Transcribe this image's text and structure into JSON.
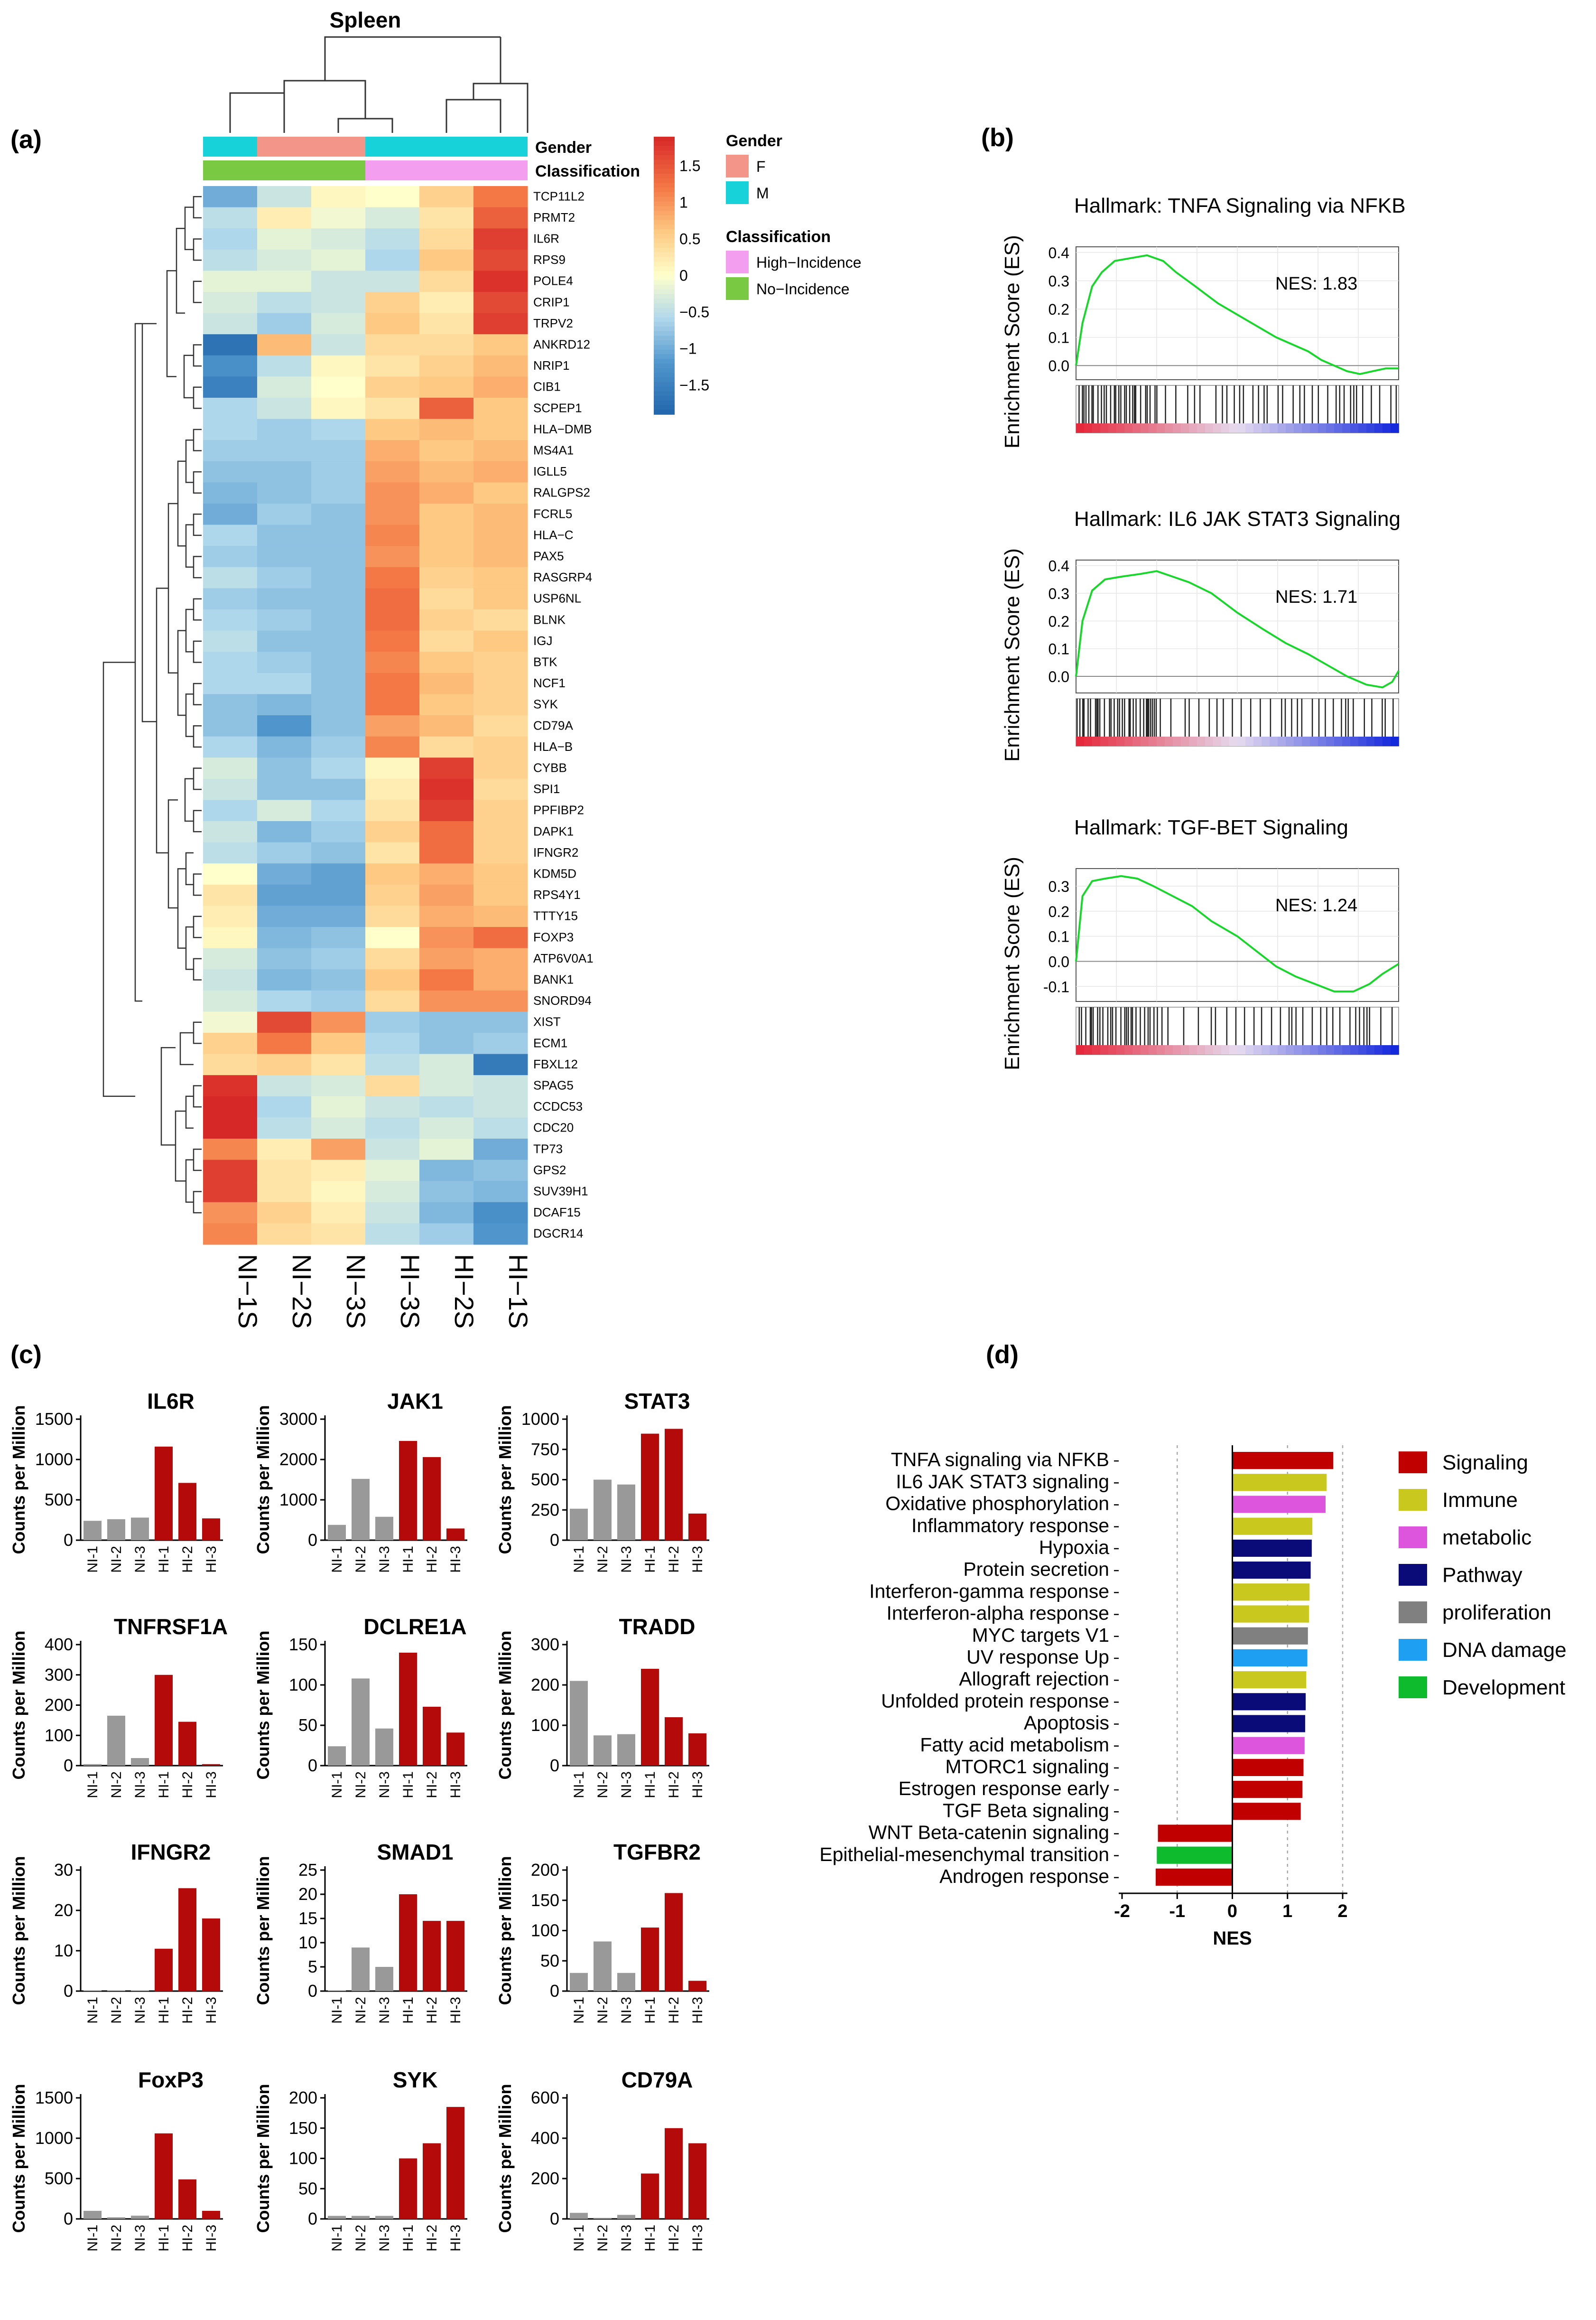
{
  "panel_labels": {
    "a": "(a)",
    "b": "(b)",
    "c": "(c)",
    "d": "(d)"
  },
  "chart_data": [
    {
      "type": "heatmap",
      "id": "a",
      "title": "Spleen",
      "columns": [
        "NI−1S",
        "NI−2S",
        "NI−3S",
        "HI−3S",
        "HI−2S",
        "HI−1S"
      ],
      "gender_values": [
        "M",
        "F",
        "F",
        "M",
        "M",
        "M"
      ],
      "classification_values": [
        "No-Incidence",
        "No-Incidence",
        "No-Incidence",
        "High-Incidence",
        "High-Incidence",
        "High-Incidence"
      ],
      "annotation_labels": [
        "Gender",
        "Classification"
      ],
      "genes": [
        "TCP11L2",
        "PRMT2",
        "IL6R",
        "RPS9",
        "POLE4",
        "CRIP1",
        "TRPV2",
        "ANKRD12",
        "NRIP1",
        "CIB1",
        "SCPEP1",
        "HLA−DMB",
        "MS4A1",
        "IGLL5",
        "RALGPS2",
        "FCRL5",
        "HLA−C",
        "PAX5",
        "RASGRP4",
        "USP6NL",
        "BLNK",
        "IGJ",
        "BTK",
        "NCF1",
        "SYK",
        "CD79A",
        "HLA−B",
        "CYBB",
        "SPI1",
        "PPFIBP2",
        "DAPK1",
        "IFNGR2",
        "KDM5D",
        "RPS4Y1",
        "TTTY15",
        "FOXP3",
        "ATP6V0A1",
        "BANK1",
        "SNORD94",
        "XIST",
        "ECM1",
        "FBXL12",
        "SPAG5",
        "CCDC53",
        "CDC20",
        "TP73",
        "GPS2",
        "SUV39H1",
        "DCAF15",
        "DGCR14"
      ],
      "values": [
        [
          -1.0,
          -0.4,
          0.1,
          0.0,
          0.5,
          1.2
        ],
        [
          -0.5,
          0.2,
          -0.1,
          -0.3,
          0.3,
          1.4
        ],
        [
          -0.6,
          -0.2,
          -0.3,
          -0.5,
          0.4,
          1.7
        ],
        [
          -0.5,
          -0.3,
          -0.2,
          -0.6,
          0.6,
          1.6
        ],
        [
          -0.2,
          -0.2,
          -0.4,
          -0.4,
          0.4,
          1.8
        ],
        [
          -0.3,
          -0.5,
          -0.4,
          0.5,
          0.2,
          1.6
        ],
        [
          -0.4,
          -0.7,
          -0.3,
          0.6,
          0.3,
          1.7
        ],
        [
          -1.7,
          0.7,
          -0.4,
          0.4,
          0.4,
          0.6
        ],
        [
          -1.3,
          -0.5,
          0.1,
          0.3,
          0.5,
          0.7
        ],
        [
          -1.5,
          -0.3,
          0.0,
          0.5,
          0.6,
          0.8
        ],
        [
          -0.6,
          -0.4,
          0.1,
          0.3,
          1.4,
          0.6
        ],
        [
          -0.6,
          -0.7,
          -0.6,
          0.6,
          0.7,
          0.6
        ],
        [
          -0.7,
          -0.7,
          -0.7,
          0.8,
          0.6,
          0.7
        ],
        [
          -0.8,
          -0.8,
          -0.7,
          0.9,
          0.7,
          0.8
        ],
        [
          -0.9,
          -0.8,
          -0.7,
          1.0,
          0.8,
          0.6
        ],
        [
          -1.0,
          -0.7,
          -0.8,
          1.0,
          0.6,
          0.7
        ],
        [
          -0.6,
          -0.8,
          -0.8,
          1.1,
          0.6,
          0.7
        ],
        [
          -0.7,
          -0.8,
          -0.8,
          1.0,
          0.6,
          0.7
        ],
        [
          -0.5,
          -0.7,
          -0.8,
          1.2,
          0.5,
          0.6
        ],
        [
          -0.7,
          -0.8,
          -0.8,
          1.3,
          0.4,
          0.6
        ],
        [
          -0.6,
          -0.7,
          -0.8,
          1.3,
          0.5,
          0.4
        ],
        [
          -0.5,
          -0.8,
          -0.8,
          1.2,
          0.4,
          0.6
        ],
        [
          -0.6,
          -0.7,
          -0.8,
          1.1,
          0.6,
          0.5
        ],
        [
          -0.6,
          -0.6,
          -0.8,
          1.2,
          0.7,
          0.5
        ],
        [
          -0.8,
          -0.9,
          -0.8,
          1.2,
          0.6,
          0.5
        ],
        [
          -0.8,
          -1.2,
          -0.8,
          0.9,
          0.7,
          0.4
        ],
        [
          -0.6,
          -0.9,
          -0.7,
          1.1,
          0.4,
          0.5
        ],
        [
          -0.3,
          -0.8,
          -0.6,
          0.1,
          1.7,
          0.5
        ],
        [
          -0.4,
          -0.8,
          -0.8,
          0.2,
          1.8,
          0.4
        ],
        [
          -0.6,
          -0.3,
          -0.6,
          0.3,
          1.7,
          0.5
        ],
        [
          -0.4,
          -0.9,
          -0.7,
          0.5,
          1.3,
          0.5
        ],
        [
          -0.5,
          -0.7,
          -0.8,
          0.3,
          1.3,
          0.5
        ],
        [
          0.0,
          -1.0,
          -1.1,
          0.6,
          0.8,
          0.6
        ],
        [
          0.3,
          -1.1,
          -1.1,
          0.5,
          0.9,
          0.6
        ],
        [
          0.2,
          -1.0,
          -1.0,
          0.4,
          0.8,
          0.7
        ],
        [
          0.1,
          -0.9,
          -0.8,
          0.0,
          1.0,
          1.3
        ],
        [
          -0.3,
          -0.8,
          -0.7,
          0.4,
          0.9,
          0.8
        ],
        [
          -0.4,
          -0.9,
          -0.8,
          0.6,
          1.2,
          0.8
        ],
        [
          -0.3,
          -0.6,
          -0.7,
          0.4,
          1.0,
          1.0
        ],
        [
          -0.1,
          1.6,
          1.0,
          -0.7,
          -0.8,
          -0.8
        ],
        [
          0.5,
          1.2,
          0.6,
          -0.6,
          -0.8,
          -0.7
        ],
        [
          0.4,
          0.5,
          0.3,
          -0.5,
          -0.3,
          -1.6
        ],
        [
          1.8,
          -0.4,
          -0.3,
          0.4,
          -0.3,
          -0.4
        ],
        [
          1.9,
          -0.6,
          -0.2,
          -0.4,
          -0.5,
          -0.4
        ],
        [
          1.9,
          -0.5,
          -0.3,
          -0.5,
          -0.3,
          -0.5
        ],
        [
          1.1,
          0.2,
          0.9,
          -0.4,
          -0.2,
          -1.0
        ],
        [
          1.7,
          0.3,
          0.2,
          -0.2,
          -0.9,
          -0.8
        ],
        [
          1.7,
          0.3,
          0.1,
          -0.3,
          -0.8,
          -0.9
        ],
        [
          1.0,
          0.5,
          0.2,
          -0.4,
          -0.9,
          -1.3
        ],
        [
          1.1,
          0.4,
          0.3,
          -0.5,
          -0.7,
          -1.2
        ]
      ],
      "colorbar_ticks": [
        "1.5",
        "1",
        "0.5",
        "0",
        "−0.5",
        "−1",
        "−1.5"
      ],
      "colorbar_tick_values": [
        1.5,
        1,
        0.5,
        0,
        -0.5,
        -1,
        -1.5
      ],
      "range": [
        -1.9,
        1.9
      ],
      "legend": {
        "gender_title": "Gender",
        "gender_items": [
          {
            "label": "F",
            "color": "#f4958a"
          },
          {
            "label": "M",
            "color": "#17d2d8"
          }
        ],
        "class_title": "Classification",
        "class_items": [
          {
            "label": "High−Incidence",
            "color": "#f49ef0"
          },
          {
            "label": "No−Incidence",
            "color": "#7ac943"
          }
        ]
      }
    },
    {
      "type": "line",
      "id": "b",
      "ylabel": "Enrichment Score (ES)",
      "plots": [
        {
          "title": "Hallmark:  TNFA Signaling via NFKB",
          "nes": "NES:  1.83",
          "yticks": [
            "0.4",
            "0.3",
            "0.2",
            "0.1",
            "0.0"
          ],
          "ylim": [
            -0.05,
            0.42
          ],
          "x": [
            0,
            0.02,
            0.05,
            0.08,
            0.12,
            0.17,
            0.22,
            0.27,
            0.31,
            0.37,
            0.44,
            0.5,
            0.56,
            0.62,
            0.68,
            0.72,
            0.76,
            0.8,
            0.84,
            0.88,
            0.92,
            0.96,
            1.0
          ],
          "y": [
            0.0,
            0.15,
            0.28,
            0.33,
            0.37,
            0.38,
            0.39,
            0.37,
            0.33,
            0.28,
            0.22,
            0.18,
            0.14,
            0.1,
            0.07,
            0.05,
            0.02,
            0.0,
            -0.02,
            -0.03,
            -0.02,
            -0.01,
            -0.01
          ]
        },
        {
          "title": "Hallmark:  IL6 JAK STAT3 Signaling",
          "nes": "NES:  1.71",
          "yticks": [
            "0.4",
            "0.3",
            "0.2",
            "0.1",
            "0.0"
          ],
          "ylim": [
            -0.06,
            0.42
          ],
          "x": [
            0,
            0.02,
            0.05,
            0.09,
            0.14,
            0.2,
            0.25,
            0.3,
            0.35,
            0.42,
            0.5,
            0.58,
            0.65,
            0.72,
            0.78,
            0.84,
            0.9,
            0.95,
            0.98,
            1.0
          ],
          "y": [
            0.0,
            0.2,
            0.31,
            0.35,
            0.36,
            0.37,
            0.38,
            0.36,
            0.34,
            0.3,
            0.23,
            0.17,
            0.12,
            0.08,
            0.04,
            0.0,
            -0.03,
            -0.04,
            -0.02,
            0.02
          ]
        },
        {
          "title": "Hallmark:  TGF-BET Signaling",
          "nes": "NES:  1.24",
          "yticks": [
            "0.3",
            "0.2",
            "0.1",
            "0.0",
            "-0.1"
          ],
          "ylim": [
            -0.16,
            0.37
          ],
          "x": [
            0,
            0.02,
            0.05,
            0.09,
            0.14,
            0.19,
            0.24,
            0.3,
            0.36,
            0.42,
            0.5,
            0.56,
            0.62,
            0.68,
            0.74,
            0.8,
            0.86,
            0.91,
            0.95,
            1.0
          ],
          "y": [
            0.0,
            0.26,
            0.32,
            0.33,
            0.34,
            0.33,
            0.3,
            0.26,
            0.22,
            0.16,
            0.1,
            0.04,
            -0.02,
            -0.06,
            -0.09,
            -0.12,
            -0.12,
            -0.09,
            -0.05,
            -0.01
          ]
        }
      ]
    },
    {
      "type": "bar",
      "id": "c",
      "ylabel": "Counts per Million",
      "categories": [
        "NI-1",
        "NI-2",
        "NI-3",
        "HI-1",
        "HI-2",
        "HI-3"
      ],
      "group_colors": [
        "#999999",
        "#999999",
        "#999999",
        "#b40a0a",
        "#b40a0a",
        "#b40a0a"
      ],
      "genes": [
        {
          "name": "IL6R",
          "ymax": 1500,
          "ticks": [
            0,
            500,
            1000,
            1500
          ],
          "values": [
            240,
            260,
            280,
            1160,
            710,
            270
          ]
        },
        {
          "name": "JAK1",
          "ymax": 3000,
          "ticks": [
            0,
            1000,
            2000,
            3000
          ],
          "values": [
            380,
            1520,
            580,
            2460,
            2060,
            290
          ]
        },
        {
          "name": "STAT3",
          "ymax": 1000,
          "ticks": [
            0,
            250,
            500,
            750,
            1000
          ],
          "values": [
            260,
            500,
            460,
            880,
            920,
            220
          ]
        },
        {
          "name": "TNFRSF1A",
          "ymax": 400,
          "ticks": [
            0,
            100,
            200,
            300,
            400
          ],
          "values": [
            5,
            165,
            25,
            300,
            145,
            5
          ]
        },
        {
          "name": "DCLRE1A",
          "ymax": 150,
          "ticks": [
            0,
            50,
            100,
            150
          ],
          "values": [
            24,
            108,
            46,
            140,
            73,
            41
          ]
        },
        {
          "name": "TRADD",
          "ymax": 300,
          "ticks": [
            0,
            100,
            200,
            300
          ],
          "values": [
            210,
            75,
            78,
            240,
            120,
            80
          ]
        },
        {
          "name": "IFNGR2",
          "ymax": 30,
          "ticks": [
            0,
            10,
            20,
            30
          ],
          "values": [
            0,
            0,
            0,
            10.5,
            25.5,
            18
          ]
        },
        {
          "name": "SMAD1",
          "ymax": 25,
          "ticks": [
            0,
            5,
            10,
            15,
            20,
            25
          ],
          "values": [
            0,
            9,
            5,
            20,
            14.5,
            14.5
          ]
        },
        {
          "name": "TGFBR2",
          "ymax": 200,
          "ticks": [
            0,
            50,
            100,
            150,
            200
          ],
          "values": [
            30,
            82,
            30,
            105,
            162,
            17
          ]
        },
        {
          "name": "FoxP3",
          "ymax": 1500,
          "ticks": [
            0,
            500,
            1000,
            1500
          ],
          "values": [
            100,
            20,
            40,
            1060,
            490,
            100
          ]
        },
        {
          "name": "SYK",
          "ymax": 200,
          "ticks": [
            0,
            50,
            100,
            150,
            200
          ],
          "values": [
            5,
            5,
            5,
            100,
            125,
            185
          ]
        },
        {
          "name": "CD79A",
          "ymax": 600,
          "ticks": [
            0,
            200,
            400,
            600
          ],
          "values": [
            30,
            5,
            20,
            225,
            450,
            375
          ]
        }
      ]
    },
    {
      "type": "bar",
      "id": "d",
      "orientation": "horizontal",
      "xlabel": "NES",
      "xlim": [
        -2,
        2
      ],
      "xticks": [
        "-2",
        "-1",
        "0",
        "1",
        "2"
      ],
      "categories": [
        "TNFA signaling via NFKB",
        "IL6 JAK STAT3 signaling",
        "Oxidative phosphorylation",
        "Inflammatory response",
        "Hypoxia",
        "Protein secretion",
        "Interferon-gamma response",
        "Interferon-alpha response",
        "MYC targets V1",
        "UV response Up",
        "Allograft rejection",
        "Unfolded protein response",
        "Apoptosis",
        "Fatty acid metabolism",
        "MTORC1 signaling",
        "Estrogen response early",
        "TGF Beta signaling",
        "WNT Beta-catenin signaling",
        "Epithelial-mesenchymal transition",
        "Androgen response"
      ],
      "values": [
        1.83,
        1.71,
        1.69,
        1.45,
        1.44,
        1.42,
        1.4,
        1.39,
        1.37,
        1.36,
        1.34,
        1.33,
        1.32,
        1.31,
        1.29,
        1.27,
        1.24,
        -1.35,
        -1.37,
        -1.39
      ],
      "groups": [
        "Signaling",
        "Immune",
        "metabolic",
        "Immune",
        "Pathway",
        "Pathway",
        "Immune",
        "Immune",
        "proliferation",
        "DNA damage",
        "Immune",
        "Pathway",
        "Pathway",
        "metabolic",
        "Signaling",
        "Signaling",
        "Signaling",
        "Signaling",
        "Development",
        "Signaling"
      ],
      "legend": [
        {
          "label": "Signaling",
          "color": "#c00000"
        },
        {
          "label": "Immune",
          "color": "#c8c81e"
        },
        {
          "label": "metabolic",
          "color": "#dd55dd"
        },
        {
          "label": "Pathway",
          "color": "#0a0a78"
        },
        {
          "label": "proliferation",
          "color": "#808080"
        },
        {
          "label": "DNA damage",
          "color": "#1e9ff2"
        },
        {
          "label": "Development",
          "color": "#0dbb2c"
        }
      ]
    }
  ]
}
